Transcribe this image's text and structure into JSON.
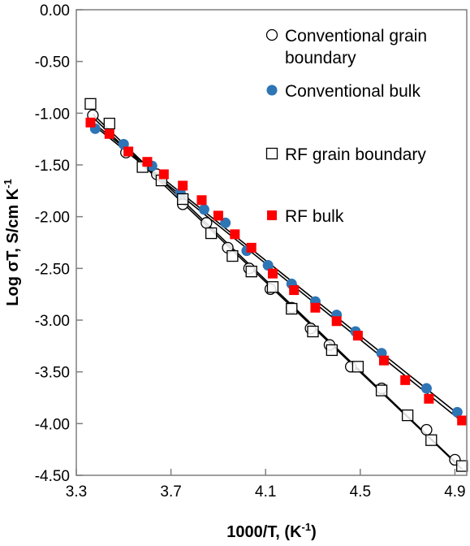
{
  "chart_data": {
    "type": "scatter",
    "xlabel": "1000/T, (K",
    "xlabel_sup": "-1",
    "xlabel_end": ")",
    "ylabel": "Log σT,  S/cm K",
    "ylabel_sup": "-1",
    "xlim": [
      3.3,
      4.95
    ],
    "ylim": [
      -4.5,
      0.0
    ],
    "xticks": [
      3.3,
      3.7,
      4.1,
      4.5,
      4.9
    ],
    "xtick_labels": [
      "3.3",
      "3.7",
      "4.1",
      "4.5",
      "4.9"
    ],
    "yticks": [
      0.0,
      -0.5,
      -1.0,
      -1.5,
      -2.0,
      -2.5,
      -3.0,
      -3.5,
      -4.0,
      -4.5
    ],
    "ytick_labels": [
      "0.00",
      "-0.50",
      "-1.00",
      "-1.50",
      "-2.00",
      "-2.50",
      "-3.00",
      "-3.50",
      "-4.00",
      "-4.50"
    ],
    "grid": false,
    "legend_position": "top-right",
    "series": [
      {
        "name": "Conventional grain boundary",
        "marker": "open-circle",
        "color": "#000000",
        "x": [
          3.37,
          3.51,
          3.64,
          3.75,
          3.85,
          3.94,
          4.03,
          4.12,
          4.21,
          4.29,
          4.37,
          4.46,
          4.59,
          4.78,
          4.9
        ],
        "y": [
          -1.02,
          -1.38,
          -1.59,
          -1.88,
          -2.06,
          -2.3,
          -2.5,
          -2.7,
          -2.88,
          -3.08,
          -3.24,
          -3.45,
          -3.66,
          -4.06,
          -4.35
        ]
      },
      {
        "name": "Conventional bulk",
        "marker": "filled-circle",
        "color": "#2e75b6",
        "x": [
          3.38,
          3.5,
          3.62,
          3.74,
          3.84,
          3.93,
          4.02,
          4.11,
          4.21,
          4.31,
          4.4,
          4.48,
          4.59,
          4.78,
          4.91
        ],
        "y": [
          -1.15,
          -1.3,
          -1.51,
          -1.77,
          -1.93,
          -2.06,
          -2.33,
          -2.47,
          -2.65,
          -2.82,
          -2.95,
          -3.11,
          -3.32,
          -3.66,
          -3.89
        ]
      },
      {
        "name": "RF grain boundary",
        "marker": "open-square",
        "color": "#000000",
        "x": [
          3.36,
          3.44,
          3.58,
          3.66,
          3.75,
          3.87,
          3.96,
          4.04,
          4.13,
          4.21,
          4.3,
          4.38,
          4.49,
          4.59,
          4.7,
          4.8,
          4.93
        ],
        "y": [
          -0.91,
          -1.1,
          -1.52,
          -1.65,
          -1.83,
          -2.16,
          -2.38,
          -2.53,
          -2.68,
          -2.89,
          -3.11,
          -3.29,
          -3.45,
          -3.68,
          -3.92,
          -4.16,
          -4.41
        ]
      },
      {
        "name": "RF bulk",
        "marker": "filled-square",
        "color": "#ff0000",
        "x": [
          3.36,
          3.44,
          3.52,
          3.6,
          3.67,
          3.75,
          3.83,
          3.9,
          3.97,
          4.04,
          4.13,
          4.22,
          4.31,
          4.4,
          4.49,
          4.6,
          4.69,
          4.79,
          4.93
        ],
        "y": [
          -1.09,
          -1.2,
          -1.37,
          -1.47,
          -1.59,
          -1.7,
          -1.84,
          -1.99,
          -2.17,
          -2.3,
          -2.55,
          -2.71,
          -2.88,
          -3.01,
          -3.15,
          -3.39,
          -3.58,
          -3.76,
          -3.97
        ]
      }
    ],
    "fit_lines": [
      {
        "name": "conventional-grain-boundary-fit",
        "x": [
          3.37,
          4.91
        ],
        "y": [
          -1.01,
          -4.39
        ]
      },
      {
        "name": "rf-grain-boundary-fit",
        "x": [
          3.37,
          4.93
        ],
        "y": [
          -1.04,
          -4.44
        ]
      },
      {
        "name": "conventional-bulk-fit",
        "x": [
          3.37,
          4.92
        ],
        "y": [
          -1.09,
          -3.92
        ]
      },
      {
        "name": "rf-bulk-fit",
        "x": [
          3.37,
          4.93
        ],
        "y": [
          -1.11,
          -3.98
        ]
      }
    ],
    "legend": [
      {
        "lines": [
          "Conventional grain",
          "boundary"
        ],
        "marker": "open-circle",
        "color": "#000000"
      },
      {
        "lines": [
          "Conventional bulk"
        ],
        "marker": "filled-circle",
        "color": "#2e75b6"
      },
      {
        "lines": [
          "RF grain boundary"
        ],
        "marker": "open-square",
        "color": "#000000"
      },
      {
        "lines": [
          "RF bulk"
        ],
        "marker": "filled-square",
        "color": "#ff0000"
      }
    ]
  }
}
